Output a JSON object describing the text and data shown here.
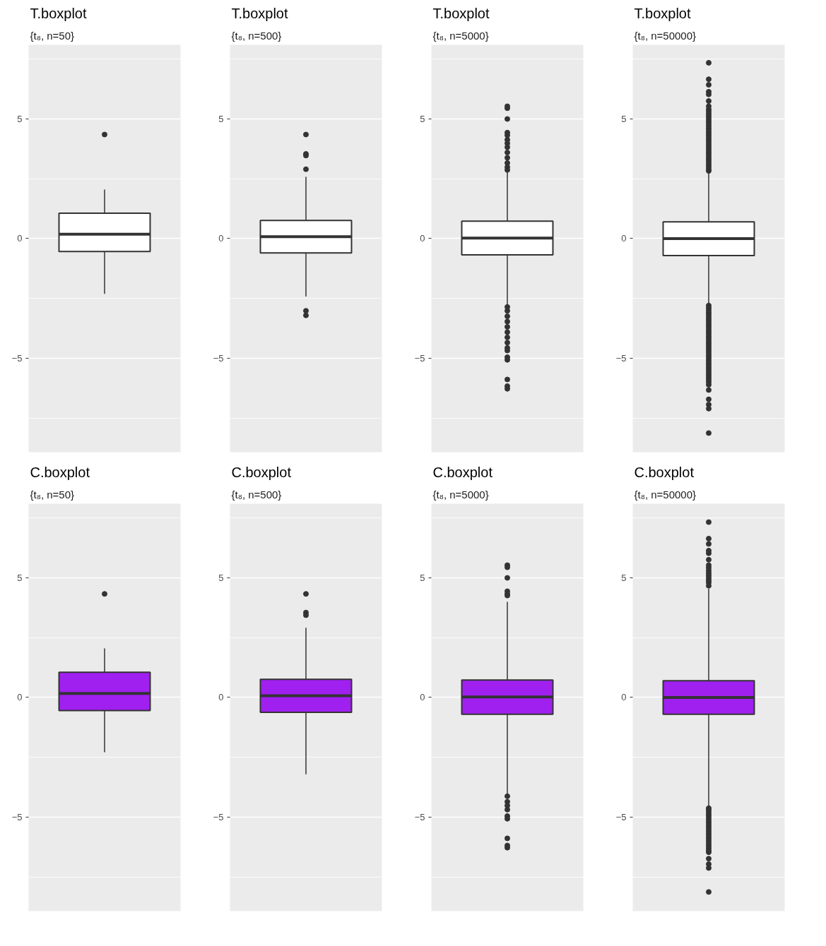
{
  "chart_data": [
    {
      "type": "box",
      "title": "T.boxplot",
      "subtitle": "{t₈, n=50}",
      "categories": [
        null
      ],
      "ylim": [
        -8.93,
        8.1
      ],
      "yticks": [
        -5,
        0,
        5
      ],
      "grid": "y",
      "tick_labels": "y",
      "series": [
        {
          "color": "#ffffff",
          "boxes": [
            {
              "low": -2.31,
              "q1": -0.54,
              "median": 0.18,
              "q3": 1.06,
              "high": 2.05,
              "outliers": [
                4.35
              ]
            }
          ]
        }
      ]
    },
    {
      "type": "box",
      "title": "T.boxplot",
      "subtitle": "{t₈, n=500}",
      "categories": [
        null
      ],
      "ylim": [
        -8.93,
        8.1
      ],
      "yticks": [
        -5,
        0,
        5
      ],
      "grid": "y",
      "tick_labels": "y",
      "series": [
        {
          "color": "#ffffff",
          "boxes": [
            {
              "low": -2.42,
              "q1": -0.6,
              "median": 0.08,
              "q3": 0.76,
              "high": 2.58,
              "outliers": [
                4.35,
                3.54,
                3.47,
                2.9,
                -3.02,
                -3.21
              ]
            }
          ]
        }
      ]
    },
    {
      "type": "box",
      "title": "T.boxplot",
      "subtitle": "{t₈, n=5000}",
      "categories": [
        null
      ],
      "ylim": [
        -8.93,
        8.1
      ],
      "yticks": [
        -5,
        0,
        5
      ],
      "grid": "y",
      "tick_labels": "y",
      "series": [
        {
          "color": "#ffffff",
          "boxes": [
            {
              "low": -2.8,
              "q1": -0.68,
              "median": 0.02,
              "q3": 0.73,
              "high": 2.77,
              "outliers": [
                5.53,
                5.45,
                5.0,
                4.43,
                4.32,
                4.13,
                3.98,
                3.82,
                3.6,
                3.38,
                3.16,
                2.99,
                2.87,
                -2.86,
                -3.02,
                -3.25,
                -3.47,
                -3.69,
                -3.91,
                -4.13,
                -4.35,
                -4.57,
                -4.68,
                -4.96,
                -5.07,
                -5.89,
                -6.17,
                -6.28
              ]
            }
          ]
        }
      ]
    },
    {
      "type": "box",
      "title": "T.boxplot",
      "subtitle": "{t₈, n=50000}",
      "categories": [
        null
      ],
      "ylim": [
        -8.93,
        8.1
      ],
      "yticks": [
        -5,
        0,
        5
      ],
      "grid": "y",
      "tick_labels": "y",
      "series": [
        {
          "color": "#ffffff",
          "boxes": [
            {
              "low": -2.75,
              "q1": -0.71,
              "median": 0.0,
              "q3": 0.7,
              "high": 2.77,
              "outliers": [
                7.35,
                6.66,
                6.43,
                6.14,
                6.03,
                5.75,
                5.53,
                5.4,
                5.3,
                5.2,
                5.1,
                5.0,
                4.9,
                4.8,
                4.7,
                4.6,
                4.5,
                4.4,
                4.3,
                4.2,
                4.1,
                4.0,
                3.9,
                3.8,
                3.7,
                3.6,
                3.5,
                3.4,
                3.3,
                3.2,
                3.1,
                3.0,
                2.9,
                2.83,
                -2.8,
                -2.9,
                -3.0,
                -3.1,
                -3.2,
                -3.3,
                -3.4,
                -3.5,
                -3.6,
                -3.7,
                -3.8,
                -3.9,
                -4.0,
                -4.1,
                -4.2,
                -4.3,
                -4.4,
                -4.5,
                -4.6,
                -4.7,
                -4.8,
                -4.9,
                -5.0,
                -5.1,
                -5.2,
                -5.3,
                -5.4,
                -5.5,
                -5.6,
                -5.7,
                -5.8,
                -5.9,
                -6.0,
                -6.11,
                -6.33,
                -6.72,
                -6.94,
                -7.11,
                -8.13
              ]
            }
          ]
        }
      ]
    },
    {
      "type": "box",
      "title": "C.boxplot",
      "subtitle": "{t₈, n=50}",
      "categories": [
        null
      ],
      "ylim": [
        -8.93,
        8.1
      ],
      "yticks": [
        -5,
        0,
        5
      ],
      "grid": "y",
      "tick_labels": "y",
      "series": [
        {
          "color": "#a020f0",
          "boxes": [
            {
              "low": -2.29,
              "q1": -0.55,
              "median": 0.17,
              "q3": 1.05,
              "high": 2.05,
              "outliers": [
                4.33
              ]
            }
          ]
        }
      ]
    },
    {
      "type": "box",
      "title": "C.boxplot",
      "subtitle": "{t₈, n=500}",
      "categories": [
        null
      ],
      "ylim": [
        -8.93,
        8.1
      ],
      "yticks": [
        -5,
        0,
        5
      ],
      "grid": "y",
      "tick_labels": "y",
      "series": [
        {
          "color": "#a020f0",
          "boxes": [
            {
              "low": -3.21,
              "q1": -0.62,
              "median": 0.07,
              "q3": 0.76,
              "high": 2.91,
              "outliers": [
                4.33,
                3.55,
                3.44
              ]
            }
          ]
        }
      ]
    },
    {
      "type": "box",
      "title": "C.boxplot",
      "subtitle": "{t₈, n=5000}",
      "categories": [
        null
      ],
      "ylim": [
        -8.93,
        8.1
      ],
      "yticks": [
        -5,
        0,
        5
      ],
      "grid": "y",
      "tick_labels": "y",
      "series": [
        {
          "color": "#a020f0",
          "boxes": [
            {
              "low": -4.02,
              "q1": -0.7,
              "median": 0.02,
              "q3": 0.73,
              "high": 4.0,
              "outliers": [
                5.53,
                5.44,
                5.0,
                4.44,
                4.33,
                4.26,
                -4.13,
                -4.36,
                -4.52,
                -4.69,
                -4.96,
                -5.07,
                -5.89,
                -6.19,
                -6.28
              ]
            }
          ]
        }
      ]
    },
    {
      "type": "box",
      "title": "C.boxplot",
      "subtitle": "{t₈, n=50000}",
      "categories": [
        null
      ],
      "ylim": [
        -8.93,
        8.1
      ],
      "yticks": [
        -5,
        0,
        5
      ],
      "grid": "y",
      "tick_labels": "y",
      "series": [
        {
          "color": "#a020f0",
          "boxes": [
            {
              "low": -4.58,
              "q1": -0.7,
              "median": 0.0,
              "q3": 0.7,
              "high": 4.54,
              "outliers": [
                7.33,
                6.64,
                6.42,
                6.14,
                6.03,
                5.76,
                5.53,
                5.42,
                5.3,
                5.2,
                5.1,
                5.0,
                4.9,
                4.8,
                4.67,
                -4.63,
                -4.7,
                -4.8,
                -4.9,
                -5.0,
                -5.1,
                -5.2,
                -5.3,
                -5.4,
                -5.5,
                -5.6,
                -5.7,
                -5.8,
                -5.9,
                -6.0,
                -6.1,
                -6.2,
                -6.3,
                -6.4,
                -6.47,
                -6.74,
                -6.97,
                -7.13,
                -8.13
              ]
            }
          ]
        }
      ]
    }
  ]
}
